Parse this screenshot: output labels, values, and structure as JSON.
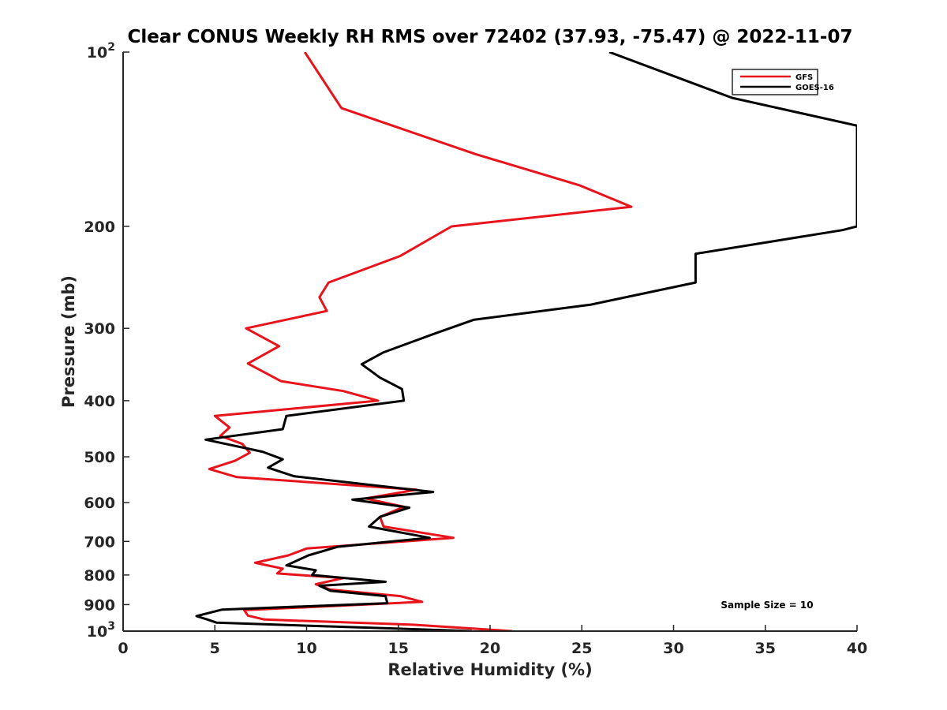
{
  "chart_data": {
    "type": "line",
    "title": "Clear CONUS Weekly RH RMS over 72402 (37.93, -75.47) @ 2022-11-07",
    "xlabel": "Relative Humidity (%)",
    "ylabel": "Pressure (mb)",
    "xlim": [
      0,
      40
    ],
    "ylim": [
      100,
      1000
    ],
    "yscale": "log",
    "y_reversed": true,
    "grid": false,
    "legend_position": "top-right",
    "x_ticks": [
      {
        "value": 0,
        "label": "0"
      },
      {
        "value": 5,
        "label": "5"
      },
      {
        "value": 10,
        "label": "10"
      },
      {
        "value": 15,
        "label": "15"
      },
      {
        "value": 20,
        "label": "20"
      },
      {
        "value": 25,
        "label": "25"
      },
      {
        "value": 30,
        "label": "30"
      },
      {
        "value": 35,
        "label": "35"
      },
      {
        "value": 40,
        "label": "40"
      }
    ],
    "y_ticks": [
      {
        "value": 100,
        "base": "10",
        "exp": "2"
      },
      {
        "value": 200,
        "label": "200"
      },
      {
        "value": 300,
        "label": "300"
      },
      {
        "value": 400,
        "label": "400"
      },
      {
        "value": 500,
        "label": "500"
      },
      {
        "value": 600,
        "label": "600"
      },
      {
        "value": 700,
        "label": "700"
      },
      {
        "value": 800,
        "label": "800"
      },
      {
        "value": 900,
        "label": "900"
      },
      {
        "value": 1000,
        "base": "10",
        "exp": "3"
      }
    ],
    "series": [
      {
        "name": "GFS",
        "color": "#e8141b",
        "points": [
          [
            9.9,
            100
          ],
          [
            11.9,
            125
          ],
          [
            19.2,
            150
          ],
          [
            24.9,
            170
          ],
          [
            27.7,
            185
          ],
          [
            17.9,
            200
          ],
          [
            15.1,
            225
          ],
          [
            11.2,
            250
          ],
          [
            10.7,
            265
          ],
          [
            11.1,
            280
          ],
          [
            6.7,
            300
          ],
          [
            8.5,
            322
          ],
          [
            6.8,
            345
          ],
          [
            8.6,
            370
          ],
          [
            12.0,
            385
          ],
          [
            13.9,
            400
          ],
          [
            5.0,
            425
          ],
          [
            5.8,
            445
          ],
          [
            5.3,
            460
          ],
          [
            6.5,
            475
          ],
          [
            6.9,
            492
          ],
          [
            6.1,
            508
          ],
          [
            4.7,
            525
          ],
          [
            6.2,
            542
          ],
          [
            16.0,
            570
          ],
          [
            13.2,
            590
          ],
          [
            15.3,
            610
          ],
          [
            14.0,
            635
          ],
          [
            14.2,
            660
          ],
          [
            18.0,
            690
          ],
          [
            10.0,
            720
          ],
          [
            9.0,
            740
          ],
          [
            7.2,
            762
          ],
          [
            8.7,
            780
          ],
          [
            8.4,
            795
          ],
          [
            12.0,
            810
          ],
          [
            10.5,
            830
          ],
          [
            11.3,
            848
          ],
          [
            15.1,
            870
          ],
          [
            16.3,
            890
          ],
          [
            6.6,
            920
          ],
          [
            6.8,
            940
          ],
          [
            7.7,
            955
          ],
          [
            15.8,
            975
          ],
          [
            21.2,
            1000
          ]
        ]
      },
      {
        "name": "GOES-16",
        "color": "#000000",
        "points": [
          [
            26.5,
            100
          ],
          [
            33.2,
            120
          ],
          [
            40.0,
            134
          ],
          [
            40.0,
            200
          ],
          [
            39.2,
            203
          ],
          [
            31.2,
            223
          ],
          [
            31.2,
            250
          ],
          [
            25.5,
            273
          ],
          [
            19.1,
            290
          ],
          [
            16.9,
            307
          ],
          [
            14.2,
            330
          ],
          [
            13.0,
            346
          ],
          [
            14.0,
            365
          ],
          [
            15.2,
            382
          ],
          [
            15.3,
            400
          ],
          [
            8.9,
            425
          ],
          [
            8.7,
            448
          ],
          [
            4.5,
            467
          ],
          [
            7.6,
            490
          ],
          [
            8.7,
            505
          ],
          [
            7.9,
            522
          ],
          [
            9.3,
            540
          ],
          [
            16.9,
            575
          ],
          [
            12.5,
            593
          ],
          [
            15.6,
            612
          ],
          [
            14.0,
            635
          ],
          [
            13.4,
            660
          ],
          [
            16.7,
            690
          ],
          [
            11.7,
            715
          ],
          [
            10.1,
            740
          ],
          [
            8.9,
            770
          ],
          [
            10.5,
            785
          ],
          [
            10.3,
            800
          ],
          [
            14.3,
            822
          ],
          [
            10.7,
            835
          ],
          [
            11.3,
            852
          ],
          [
            14.3,
            870
          ],
          [
            14.4,
            895
          ],
          [
            5.4,
            918
          ],
          [
            4.0,
            942
          ],
          [
            4.6,
            955
          ],
          [
            5.1,
            967
          ],
          [
            19.0,
            1000
          ]
        ]
      }
    ],
    "annotations": [
      {
        "text": "Sample Size = 10",
        "position": "bottom-right"
      }
    ]
  }
}
